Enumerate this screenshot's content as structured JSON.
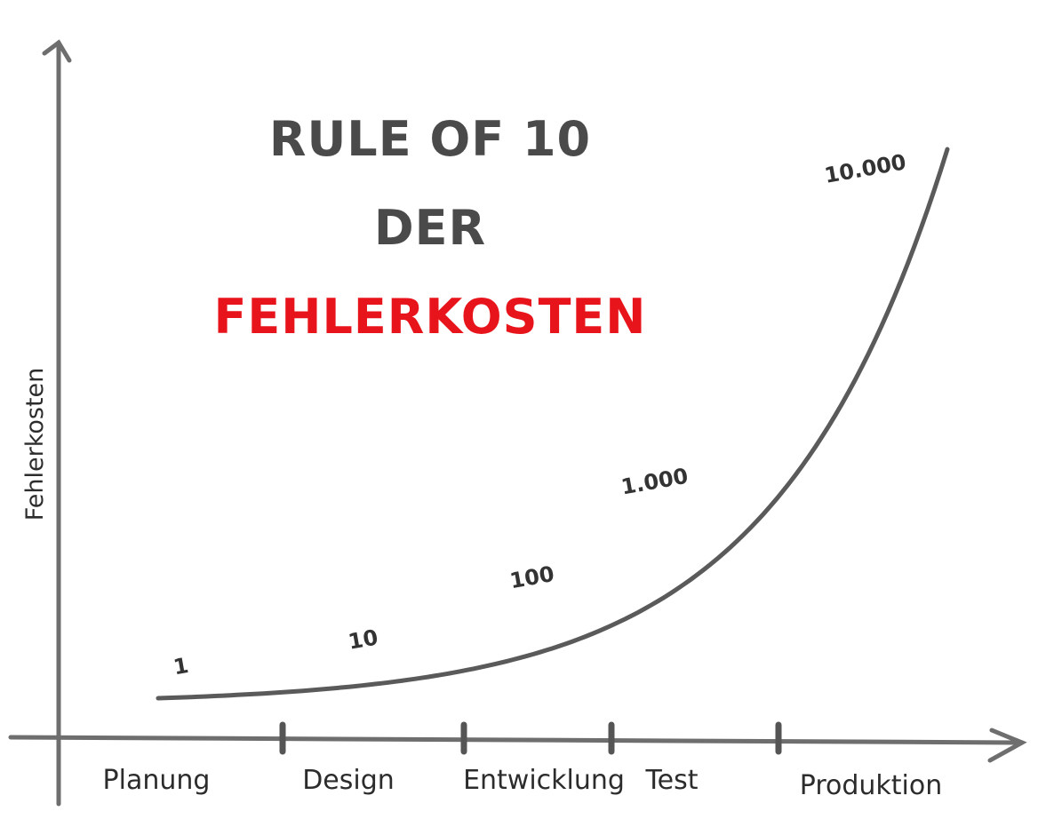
{
  "colors": {
    "axis": "#6e6e6e",
    "curve": "#5a5a5a",
    "title": "#4a4a4a",
    "title_highlight": "#e8141b",
    "text": "#2c2c2c"
  },
  "chart_data": {
    "type": "line",
    "title_lines": [
      "RULE OF 10",
      "DER",
      "FEHLERKOSTEN"
    ],
    "title_highlight_index": 2,
    "xlabel": "",
    "ylabel": "Fehlerkosten",
    "categories": [
      "Planung",
      "Design",
      "Entwicklung",
      "Test",
      "Produktion"
    ],
    "series": [
      {
        "values": [
          1,
          10,
          100,
          1000,
          10000
        ],
        "data_labels": [
          "1",
          "10",
          "100",
          "1.000",
          "10.000"
        ]
      }
    ],
    "grid": false,
    "legend": "none"
  }
}
